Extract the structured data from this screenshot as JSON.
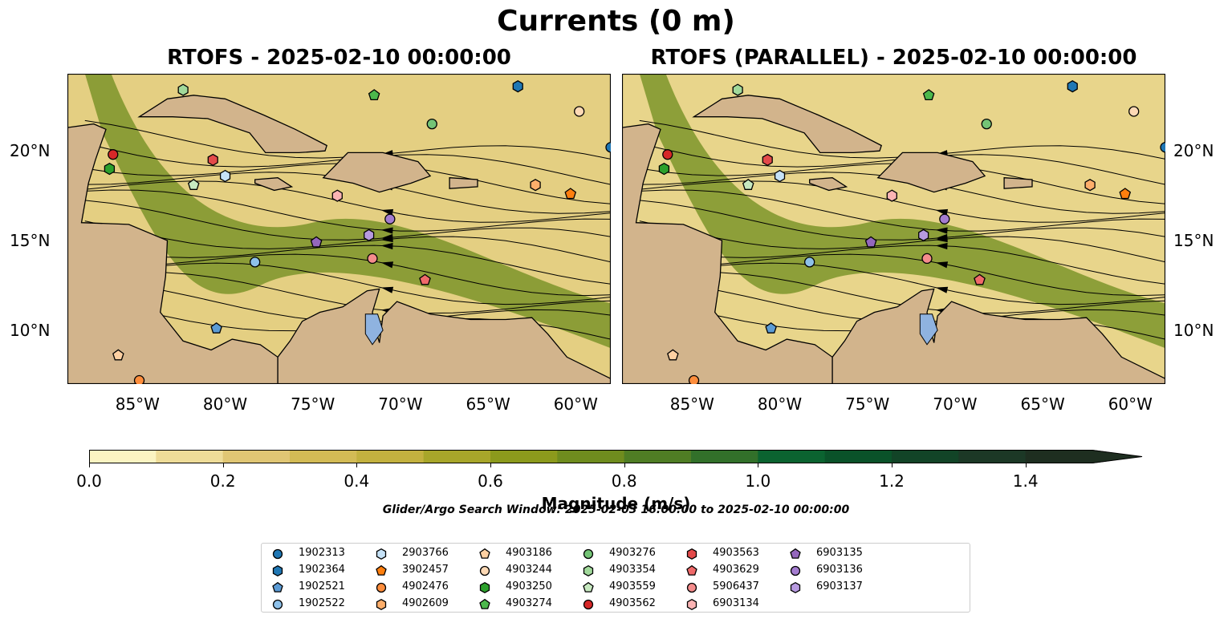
{
  "figure": {
    "suptitle": "Currents (0 m)",
    "search_window": "Glider/Argo Search Window: 2025-02-03 16:00:00 to 2025-02-10 00:00:00"
  },
  "chart_data": {
    "type": "heatmap",
    "variable": "current magnitude with streamlines",
    "panels": [
      {
        "title": "RTOFS - 2025-02-10 00:00:00"
      },
      {
        "title": "RTOFS (PARALLEL) - 2025-02-10 00:00:00"
      }
    ],
    "xlim": [
      -89,
      -58
    ],
    "ylim": [
      7,
      24.3
    ],
    "xticks": [
      {
        "value": -85,
        "label": "85°W"
      },
      {
        "value": -80,
        "label": "80°W"
      },
      {
        "value": -75,
        "label": "75°W"
      },
      {
        "value": -70,
        "label": "70°W"
      },
      {
        "value": -65,
        "label": "65°W"
      },
      {
        "value": -60,
        "label": "60°W"
      }
    ],
    "yticks": [
      {
        "value": 10,
        "label": "10°N"
      },
      {
        "value": 15,
        "label": "15°N"
      },
      {
        "value": 20,
        "label": "20°N"
      }
    ],
    "colorbar": {
      "label": "Magnitude (m/s)",
      "min": 0.0,
      "max": 1.5,
      "extend": "max",
      "ticks": [
        "0.0",
        "0.2",
        "0.4",
        "0.6",
        "0.8",
        "1.0",
        "1.2",
        "1.4"
      ],
      "colors": [
        "#fbf4c2",
        "#eedc98",
        "#e0c674",
        "#d3bb55",
        "#c3b13f",
        "#a8a62a",
        "#8c9a1c",
        "#6f8c1e",
        "#4f7d24",
        "#32702a",
        "#0b6330",
        "#0a5229",
        "#124427",
        "#1c3826",
        "#1e2e20"
      ]
    },
    "floats": [
      {
        "id": "1902313",
        "marker": "circle",
        "color": "#1f77b4",
        "lon": -58.0,
        "lat": 20.2
      },
      {
        "id": "1902364",
        "marker": "hexagon",
        "color": "#1f77b4",
        "lon": -63.3,
        "lat": 23.6
      },
      {
        "id": "1902521",
        "marker": "pentagon",
        "color": "#5b9bd5",
        "lon": -80.5,
        "lat": 10.1
      },
      {
        "id": "1902522",
        "marker": "circle",
        "color": "#8ec1ea",
        "lon": -78.3,
        "lat": 13.8
      },
      {
        "id": "2903766",
        "marker": "hexagon",
        "color": "#c6e2f7",
        "lon": -80.0,
        "lat": 18.6
      },
      {
        "id": "3902457",
        "marker": "pentagon",
        "color": "#ff7f0e",
        "lon": -60.3,
        "lat": 17.6
      },
      {
        "id": "4902476",
        "marker": "circle",
        "color": "#fd8d3c",
        "lon": -84.9,
        "lat": 7.2
      },
      {
        "id": "4902609",
        "marker": "hexagon",
        "color": "#fdae6b",
        "lon": -62.3,
        "lat": 18.1
      },
      {
        "id": "4903186",
        "marker": "pentagon",
        "color": "#fdd0a2",
        "lon": -86.1,
        "lat": 8.6
      },
      {
        "id": "4903244",
        "marker": "circle",
        "color": "#fdd9b5",
        "lon": -59.8,
        "lat": 22.2
      },
      {
        "id": "4903250",
        "marker": "hexagon",
        "color": "#2ca02c",
        "lon": -86.6,
        "lat": 19.0
      },
      {
        "id": "4903274",
        "marker": "pentagon",
        "color": "#4cb84c",
        "lon": -71.5,
        "lat": 23.1
      },
      {
        "id": "4903276",
        "marker": "circle",
        "color": "#74c476",
        "lon": -68.2,
        "lat": 21.5
      },
      {
        "id": "4903354",
        "marker": "hexagon",
        "color": "#a1d99b",
        "lon": -82.4,
        "lat": 23.4
      },
      {
        "id": "4903559",
        "marker": "pentagon",
        "color": "#c7e9c0",
        "lon": -81.8,
        "lat": 18.1
      },
      {
        "id": "4903562",
        "marker": "circle",
        "color": "#d62728",
        "lon": -86.4,
        "lat": 19.8
      },
      {
        "id": "4903563",
        "marker": "hexagon",
        "color": "#e34a4a",
        "lon": -80.7,
        "lat": 19.5
      },
      {
        "id": "4903629",
        "marker": "pentagon",
        "color": "#f06a6a",
        "lon": -68.6,
        "lat": 12.8
      },
      {
        "id": "5906437",
        "marker": "circle",
        "color": "#f48c8c",
        "lon": -71.6,
        "lat": 14.0
      },
      {
        "id": "6903134",
        "marker": "hexagon",
        "color": "#fbb4b4",
        "lon": -73.6,
        "lat": 17.5
      },
      {
        "id": "6903135",
        "marker": "pentagon",
        "color": "#9467bd",
        "lon": -74.8,
        "lat": 14.9
      },
      {
        "id": "6903136",
        "marker": "circle",
        "color": "#a47cd0",
        "lon": -70.6,
        "lat": 16.2
      },
      {
        "id": "6903137",
        "marker": "hexagon",
        "color": "#b79ae0",
        "lon": -71.8,
        "lat": 15.3
      }
    ]
  }
}
